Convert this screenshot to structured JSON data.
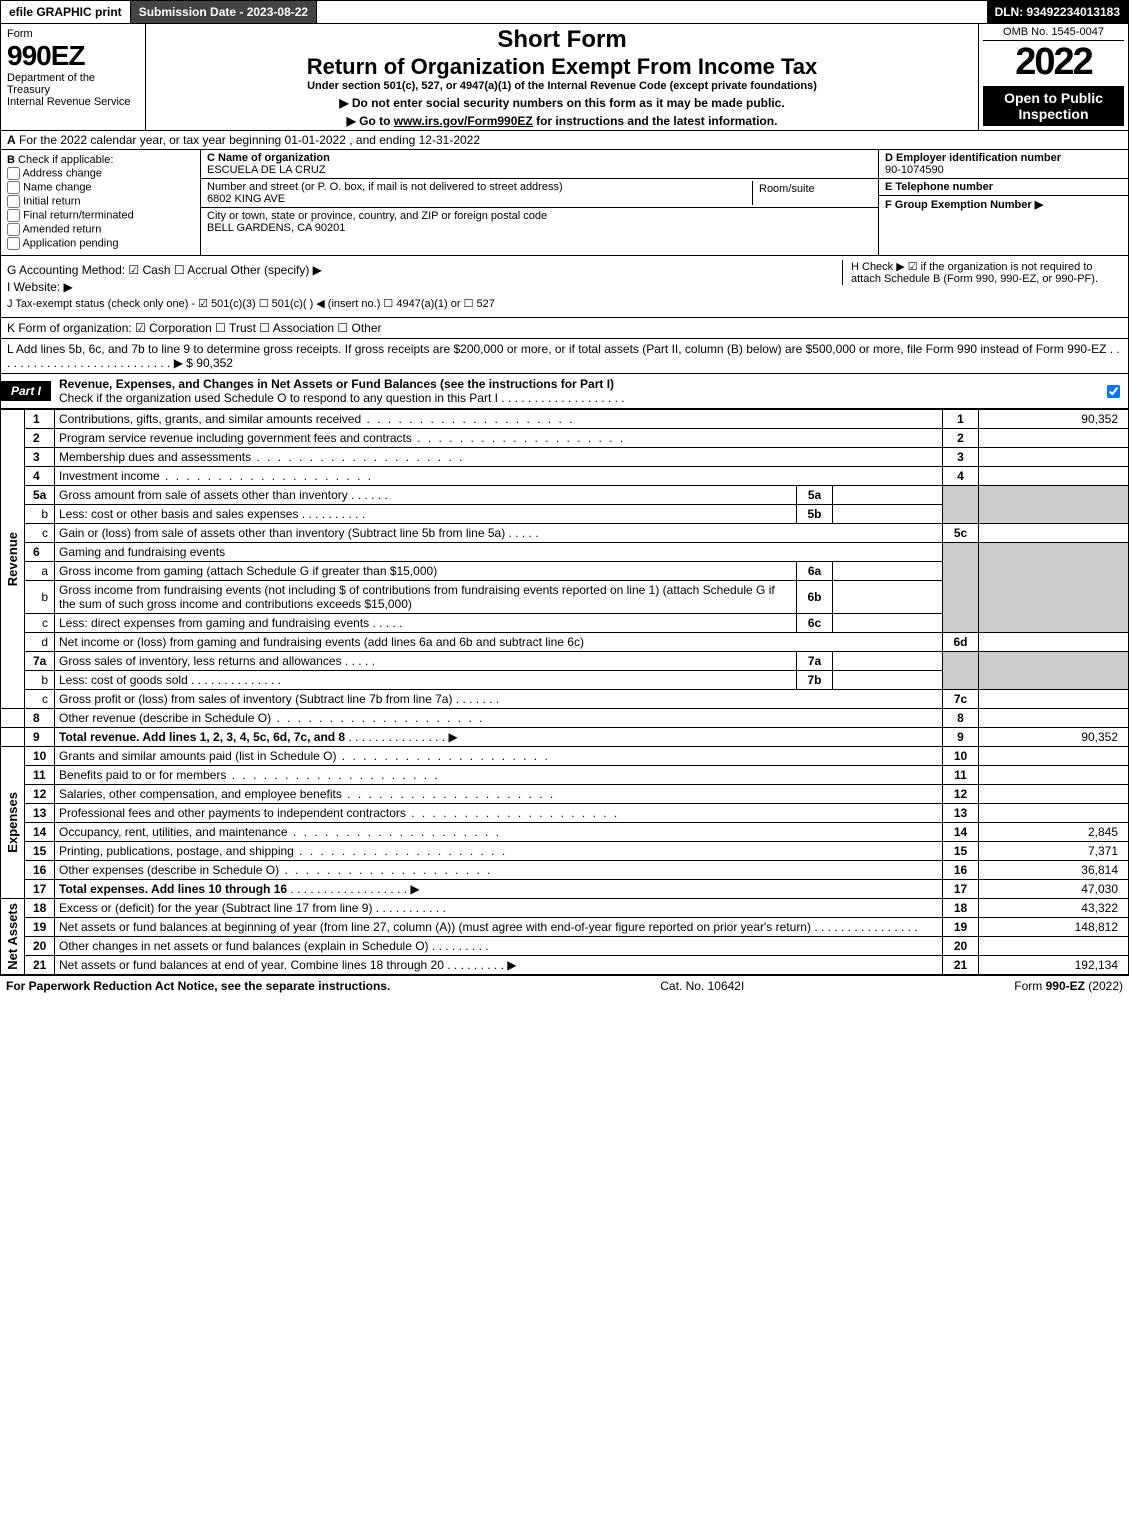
{
  "topbar": {
    "efile": "efile GRAPHIC print",
    "submission": "Submission Date - 2023-08-22",
    "dln": "DLN: 93492234013183"
  },
  "header": {
    "form_word": "Form",
    "form_num": "990EZ",
    "dept": "Department of the Treasury",
    "irs": "Internal Revenue Service",
    "short": "Short Form",
    "ret": "Return of Organization Exempt From Income Tax",
    "under": "Under section 501(c), 527, or 4947(a)(1) of the Internal Revenue Code (except private foundations)",
    "arrow1": "▶ Do not enter social security numbers on this form as it may be made public.",
    "arrow2_pre": "▶ Go to ",
    "arrow2_link": "www.irs.gov/Form990EZ",
    "arrow2_post": " for instructions and the latest information.",
    "omb": "OMB No. 1545-0047",
    "year": "2022",
    "open": "Open to Public Inspection"
  },
  "rowA": {
    "label": "A",
    "text": "For the 2022 calendar year, or tax year beginning 01-01-2022 , and ending 12-31-2022"
  },
  "colB": {
    "label": "B",
    "check": "Check if applicable:",
    "opts": [
      "Address change",
      "Name change",
      "Initial return",
      "Final return/terminated",
      "Amended return",
      "Application pending"
    ]
  },
  "colC": {
    "name_lbl": "C Name of organization",
    "name": "ESCUELA DE LA CRUZ",
    "street_lbl": "Number and street (or P. O. box, if mail is not delivered to street address)",
    "street": "6802 KING AVE",
    "room_lbl": "Room/suite",
    "city_lbl": "City or town, state or province, country, and ZIP or foreign postal code",
    "city": "BELL GARDENS, CA  90201"
  },
  "colDEF": {
    "d_lbl": "D Employer identification number",
    "d_val": "90-1074590",
    "e_lbl": "E Telephone number",
    "f_lbl": "F Group Exemption Number  ▶"
  },
  "ghij": {
    "g": "G Accounting Method:  ☑ Cash  ☐ Accrual  Other (specify) ▶",
    "h": "H  Check ▶ ☑ if the organization is not required to attach Schedule B (Form 990, 990-EZ, or 990-PF).",
    "i": "I Website: ▶",
    "j": "J Tax-exempt status (check only one) - ☑ 501(c)(3) ☐ 501(c)(  ) ◀ (insert no.) ☐ 4947(a)(1) or ☐ 527"
  },
  "k": "K Form of organization:  ☑ Corporation  ☐ Trust  ☐ Association  ☐ Other",
  "l": "L Add lines 5b, 6c, and 7b to line 9 to determine gross receipts. If gross receipts are $200,000 or more, or if total assets (Part II, column (B) below) are $500,000 or more, file Form 990 instead of Form 990-EZ . . . . . . . . . . . . . . . . . . . . . . . . . . . ▶ $ 90,352",
  "part1": {
    "tag": "Part I",
    "title": "Revenue, Expenses, and Changes in Net Assets or Fund Balances (see the instructions for Part I)",
    "sub": "Check if the organization used Schedule O to respond to any question in this Part I . . . . . . . . . . . . . . . . . . ."
  },
  "lines": {
    "l1": {
      "n": "1",
      "d": "Contributions, gifts, grants, and similar amounts received",
      "b": "1",
      "v": "90,352"
    },
    "l2": {
      "n": "2",
      "d": "Program service revenue including government fees and contracts",
      "b": "2",
      "v": ""
    },
    "l3": {
      "n": "3",
      "d": "Membership dues and assessments",
      "b": "3",
      "v": ""
    },
    "l4": {
      "n": "4",
      "d": "Investment income",
      "b": "4",
      "v": ""
    },
    "l5a": {
      "n": "5a",
      "d": "Gross amount from sale of assets other than inventory",
      "ib": "5a"
    },
    "l5b": {
      "n": "b",
      "d": "Less: cost or other basis and sales expenses",
      "ib": "5b"
    },
    "l5c": {
      "n": "c",
      "d": "Gain or (loss) from sale of assets other than inventory (Subtract line 5b from line 5a)",
      "b": "5c",
      "v": ""
    },
    "l6": {
      "n": "6",
      "d": "Gaming and fundraising events"
    },
    "l6a": {
      "n": "a",
      "d": "Gross income from gaming (attach Schedule G if greater than $15,000)",
      "ib": "6a"
    },
    "l6b": {
      "n": "b",
      "d": "Gross income from fundraising events (not including $               of contributions from fundraising events reported on line 1) (attach Schedule G if the sum of such gross income and contributions exceeds $15,000)",
      "ib": "6b"
    },
    "l6c": {
      "n": "c",
      "d": "Less: direct expenses from gaming and fundraising events",
      "ib": "6c"
    },
    "l6d": {
      "n": "d",
      "d": "Net income or (loss) from gaming and fundraising events (add lines 6a and 6b and subtract line 6c)",
      "b": "6d",
      "v": ""
    },
    "l7a": {
      "n": "7a",
      "d": "Gross sales of inventory, less returns and allowances",
      "ib": "7a"
    },
    "l7b": {
      "n": "b",
      "d": "Less: cost of goods sold",
      "ib": "7b"
    },
    "l7c": {
      "n": "c",
      "d": "Gross profit or (loss) from sales of inventory (Subtract line 7b from line 7a)",
      "b": "7c",
      "v": ""
    },
    "l8": {
      "n": "8",
      "d": "Other revenue (describe in Schedule O)",
      "b": "8",
      "v": ""
    },
    "l9": {
      "n": "9",
      "d": "Total revenue. Add lines 1, 2, 3, 4, 5c, 6d, 7c, and 8",
      "b": "9",
      "v": "90,352",
      "arrow": "▶"
    },
    "l10": {
      "n": "10",
      "d": "Grants and similar amounts paid (list in Schedule O)",
      "b": "10",
      "v": ""
    },
    "l11": {
      "n": "11",
      "d": "Benefits paid to or for members",
      "b": "11",
      "v": ""
    },
    "l12": {
      "n": "12",
      "d": "Salaries, other compensation, and employee benefits",
      "b": "12",
      "v": ""
    },
    "l13": {
      "n": "13",
      "d": "Professional fees and other payments to independent contractors",
      "b": "13",
      "v": ""
    },
    "l14": {
      "n": "14",
      "d": "Occupancy, rent, utilities, and maintenance",
      "b": "14",
      "v": "2,845"
    },
    "l15": {
      "n": "15",
      "d": "Printing, publications, postage, and shipping",
      "b": "15",
      "v": "7,371"
    },
    "l16": {
      "n": "16",
      "d": "Other expenses (describe in Schedule O)",
      "b": "16",
      "v": "36,814"
    },
    "l17": {
      "n": "17",
      "d": "Total expenses. Add lines 10 through 16",
      "b": "17",
      "v": "47,030",
      "arrow": "▶"
    },
    "l18": {
      "n": "18",
      "d": "Excess or (deficit) for the year (Subtract line 17 from line 9)",
      "b": "18",
      "v": "43,322"
    },
    "l19": {
      "n": "19",
      "d": "Net assets or fund balances at beginning of year (from line 27, column (A)) (must agree with end-of-year figure reported on prior year's return)",
      "b": "19",
      "v": "148,812"
    },
    "l20": {
      "n": "20",
      "d": "Other changes in net assets or fund balances (explain in Schedule O)",
      "b": "20",
      "v": ""
    },
    "l21": {
      "n": "21",
      "d": "Net assets or fund balances at end of year. Combine lines 18 through 20",
      "b": "21",
      "v": "192,134",
      "arrow": "▶"
    }
  },
  "side": {
    "rev": "Revenue",
    "exp": "Expenses",
    "na": "Net Assets"
  },
  "footer": {
    "left": "For Paperwork Reduction Act Notice, see the separate instructions.",
    "mid": "Cat. No. 10642I",
    "right": "Form 990-EZ (2022)"
  }
}
